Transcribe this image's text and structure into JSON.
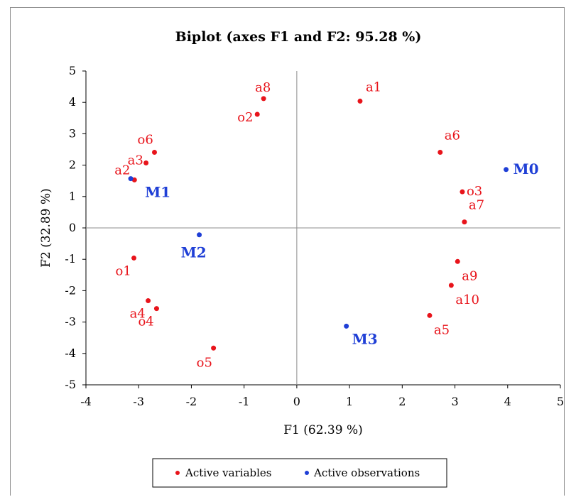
{
  "chart_data": {
    "type": "scatter",
    "title": "Biplot (axes F1 and F2: 95.28 %)",
    "xlabel": "F1 (62.39 %)",
    "ylabel": "F2 (32.89 %)",
    "xlim": [
      -4,
      5
    ],
    "ylim": [
      -5,
      5
    ],
    "xticks": [
      "-4",
      "-3",
      "-2",
      "-1",
      "0",
      "1",
      "2",
      "3",
      "4",
      "5"
    ],
    "yticks": [
      "-5",
      "-4",
      "-3",
      "-2",
      "-1",
      "0",
      "1",
      "2",
      "3",
      "4",
      "5"
    ],
    "legend": {
      "position": "bottom"
    },
    "colors": {
      "variables": "#e8141b",
      "observations": "#1f3fd6"
    },
    "series": [
      {
        "name": "Active variables",
        "color": "#e8141b",
        "points": [
          {
            "label": "a1",
            "x": 1.2,
            "y": 4.04
          },
          {
            "label": "a2",
            "x": -3.08,
            "y": 1.53
          },
          {
            "label": "a3",
            "x": -2.86,
            "y": 2.07
          },
          {
            "label": "a4",
            "x": -2.82,
            "y": -2.32
          },
          {
            "label": "a5",
            "x": 2.52,
            "y": -2.79
          },
          {
            "label": "a6",
            "x": 2.72,
            "y": 2.41
          },
          {
            "label": "a7",
            "x": 3.18,
            "y": 0.19
          },
          {
            "label": "a8",
            "x": -0.63,
            "y": 4.12
          },
          {
            "label": "a9",
            "x": 3.05,
            "y": -1.07
          },
          {
            "label": "a10",
            "x": 2.93,
            "y": -1.83
          },
          {
            "label": "o1",
            "x": -3.09,
            "y": -0.96
          },
          {
            "label": "o2",
            "x": -0.75,
            "y": 3.62
          },
          {
            "label": "o3",
            "x": 3.14,
            "y": 1.15
          },
          {
            "label": "o4",
            "x": -2.66,
            "y": -2.57
          },
          {
            "label": "o5",
            "x": -1.58,
            "y": -3.83
          },
          {
            "label": "o6",
            "x": -2.7,
            "y": 2.41
          }
        ]
      },
      {
        "name": "Active observations",
        "color": "#1f3fd6",
        "points": [
          {
            "label": "M0",
            "x": 3.97,
            "y": 1.86
          },
          {
            "label": "M1",
            "x": -3.15,
            "y": 1.57
          },
          {
            "label": "M2",
            "x": -1.85,
            "y": -0.22
          },
          {
            "label": "M3",
            "x": 0.94,
            "y": -3.13
          }
        ]
      }
    ]
  }
}
